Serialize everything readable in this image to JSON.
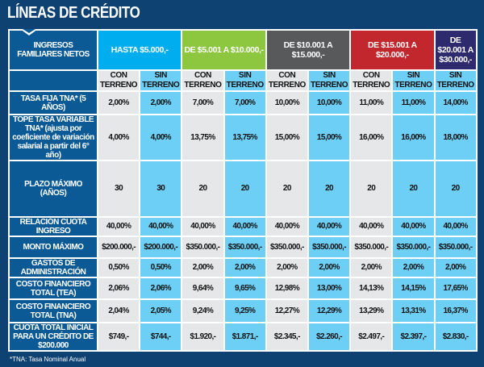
{
  "title": "LÍNEAS DE CRÉDITO",
  "header_label": "INGRESOS FAMILIARES NETOS",
  "groups": [
    {
      "label": "HASTA $5.000,-",
      "color": "#00aeef",
      "span": 2
    },
    {
      "label": "DE $5.001 A $10.000,-",
      "color": "#8dc63f",
      "span": 2
    },
    {
      "label": "DE $10.001 A $15.000,-",
      "color": "#58595b",
      "span": 2
    },
    {
      "label": "DE $15.001 A $20.000,-",
      "color": "#c1272d",
      "span": 2
    },
    {
      "label": "DE $20.001 A $30.000,-",
      "color": "#2e2a6e",
      "span": 1
    }
  ],
  "subheaders": [
    "CON TERRENO",
    "SIN TERRENO",
    "CON TERRENO",
    "SIN TERRENO",
    "CON TERRENO",
    "SIN TERRENO",
    "CON TERRENO",
    "SIN TERRENO",
    "SIN TERRENO"
  ],
  "rows": [
    {
      "label": "TASA FIJA TNA* (5 AÑOS)",
      "values": [
        "2,00%",
        "2,00%",
        "7,00%",
        "7,00%",
        "10,00%",
        "10,00%",
        "11,00%",
        "11,00%",
        "14,00%"
      ]
    },
    {
      "label": "TOPE TASA VARIABLE TNA* (ajusta por coeficiente de variación salarial a partir del 6° año)",
      "values": [
        "4,00%",
        "4,00%",
        "13,75%",
        "13,75%",
        "15,00%",
        "15,00%",
        "16,00%",
        "16,00%",
        "18,00%"
      ]
    },
    {
      "label": "PLAZO MÁXIMO (AÑOS)",
      "values": [
        "30",
        "30",
        "20",
        "20",
        "20",
        "20",
        "20",
        "20",
        "20"
      ]
    },
    {
      "label": "RELACIÓN CUOTA INGRESO",
      "values": [
        "40,00%",
        "40,00%",
        "40,00%",
        "40,00%",
        "40,00%",
        "40,00%",
        "40,00%",
        "40,00%",
        "40,00%"
      ]
    },
    {
      "label": "MONTO MÁXIMO",
      "values": [
        "$200.000,-",
        "$200.000,-",
        "$350.000,-",
        "$350.000,-",
        "$350.000,-",
        "$350.000,-",
        "$350.000,-",
        "$350.000,-",
        "$350.000,-"
      ]
    },
    {
      "label": "GASTOS DE ADMINISTRACIÓN",
      "values": [
        "0,50%",
        "0,50%",
        "2,00%",
        "2,00%",
        "2,00%",
        "2,00%",
        "2,00%",
        "2,00%",
        "2,00%"
      ]
    },
    {
      "label": "COSTO FINANCIERO TOTAL (TEA)",
      "values": [
        "2,06%",
        "2,06%",
        "9,64%",
        "9,65%",
        "12,98%",
        "13,00%",
        "14,13%",
        "14,15%",
        "17,65%"
      ]
    },
    {
      "label": "COSTO FINANCIERO TOTAL (TNA)",
      "values": [
        "2,04%",
        "2,05%",
        "9,24%",
        "9,25%",
        "12,27%",
        "12,29%",
        "13,29%",
        "13,31%",
        "16,37%"
      ]
    },
    {
      "label": "CUOTA TOTAL INICIAL PARA UN CRÉDITO DE $200.000",
      "values": [
        "$749,-",
        "$744,-",
        "$1.920,-",
        "$1.871,-",
        "$2.345,-",
        "$2.260,-",
        "$2.497,-",
        "$2.397,-",
        "$2.830,-"
      ]
    }
  ],
  "footnote": "*TNA: Tasa Nominal Anual"
}
